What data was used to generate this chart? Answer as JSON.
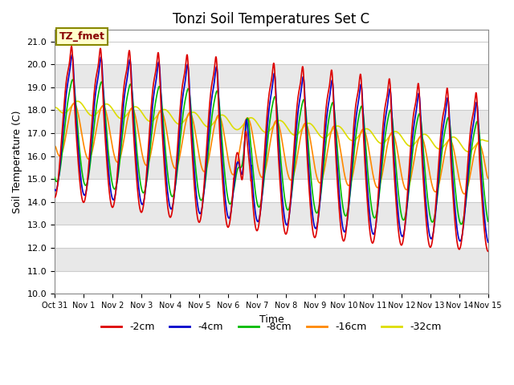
{
  "title": "Tonzi Soil Temperatures Set C",
  "xlabel": "Time",
  "ylabel": "Soil Temperature (C)",
  "ylim": [
    10.0,
    21.5
  ],
  "yticks": [
    10.0,
    11.0,
    12.0,
    13.0,
    14.0,
    15.0,
    16.0,
    17.0,
    18.0,
    19.0,
    20.0,
    21.0
  ],
  "xtick_labels": [
    "Oct 31",
    "Nov 1",
    "Nov 2",
    "Nov 3",
    "Nov 4",
    "Nov 5",
    "Nov 6",
    "Nov 7",
    "Nov 8",
    "Nov 9",
    "Nov 10",
    "Nov 11",
    "Nov 12",
    "Nov 13",
    "Nov 14",
    "Nov 15"
  ],
  "legend_labels": [
    "-2cm",
    "-4cm",
    "-8cm",
    "-16cm",
    "-32cm"
  ],
  "line_colors": [
    "#dd0000",
    "#0000cc",
    "#00bb00",
    "#ff8800",
    "#dddd00"
  ],
  "annotation_text": "TZ_fmet",
  "annotation_color": "#880000",
  "annotation_bg": "#ffffcc",
  "annotation_edge": "#888800",
  "fig_bg_color": "#ffffff",
  "band_colors": [
    "#ffffff",
    "#e8e8e8"
  ],
  "grid_line_color": "#cccccc",
  "title_fontsize": 12,
  "axis_label_fontsize": 9,
  "tick_fontsize": 8,
  "legend_fontsize": 9,
  "n_days": 15,
  "points_per_day": 144
}
